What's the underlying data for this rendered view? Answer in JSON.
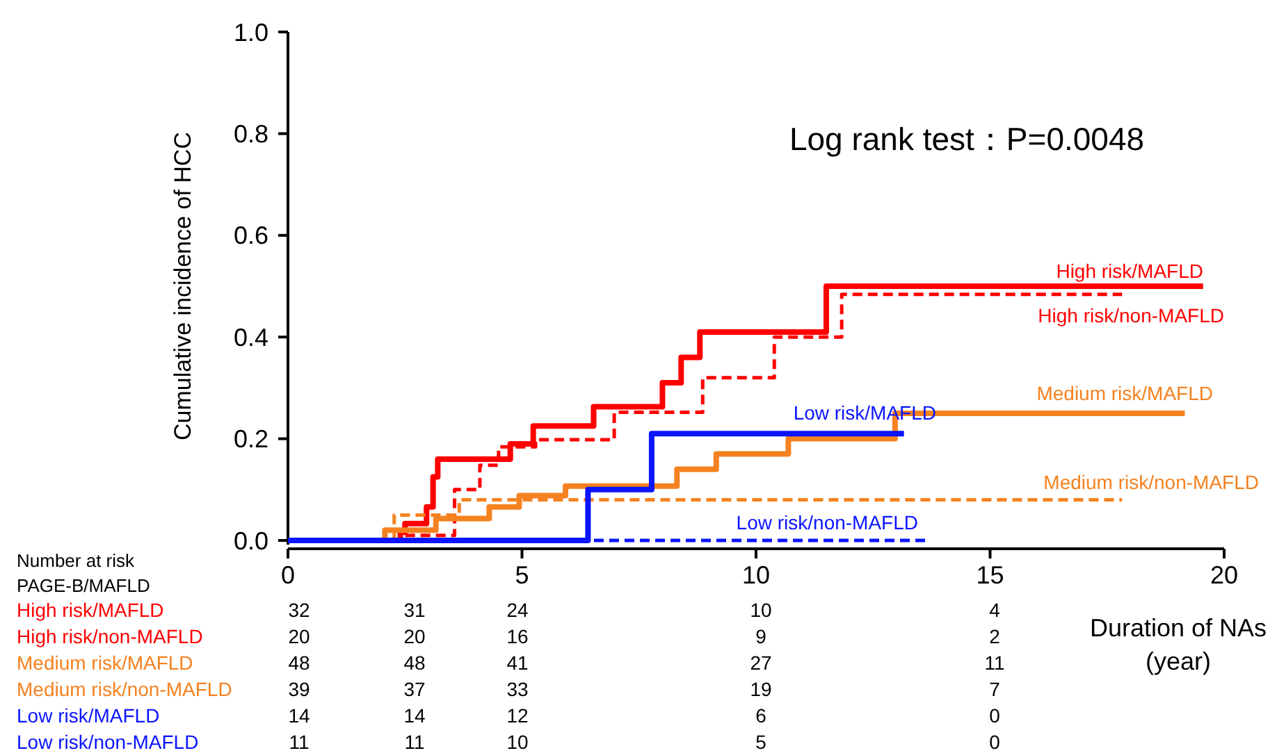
{
  "chart_data": {
    "type": "step",
    "xlabel": "Duration of NAs\n(year)",
    "ylabel": "Cumulative incidence of HCC",
    "xlim": [
      0,
      20
    ],
    "xticks": [
      0,
      5,
      10,
      15,
      20
    ],
    "ylim": [
      0,
      1
    ],
    "yticks": [
      {
        "value": 0,
        "label": "0.0"
      },
      {
        "value": 0.2,
        "label": "0.2"
      },
      {
        "value": 0.4,
        "label": "0.4"
      },
      {
        "value": 0.6,
        "label": "0.6"
      },
      {
        "value": 0.8,
        "label": "0.8"
      },
      {
        "value": 1,
        "label": "1.0"
      }
    ],
    "grid": false,
    "legend": false,
    "marker": "none",
    "series": [
      {
        "name": "High risk/MAFLD",
        "color": "#ff0000",
        "line_style": "solid",
        "x": [
          0,
          2.4,
          2.5,
          2.96,
          3.1,
          3.2,
          4.75,
          5.24,
          6.53,
          8.0,
          8.4,
          8.8,
          11.5,
          19.55
        ],
        "values": [
          0,
          0.016,
          0.033,
          0.066,
          0.125,
          0.16,
          0.19,
          0.225,
          0.263,
          0.31,
          0.36,
          0.41,
          0.5,
          0.5
        ]
      },
      {
        "name": "High risk/non-MAFLD",
        "color": "#ff0000",
        "line_style": "dashed",
        "x": [
          0,
          2.4,
          3.56,
          4.1,
          4.5,
          5.29,
          6.97,
          8.86,
          10.39,
          11.83,
          17.82
        ],
        "values": [
          0,
          0.01,
          0.1,
          0.148,
          0.184,
          0.198,
          0.252,
          0.32,
          0.4,
          0.484,
          0.484
        ]
      },
      {
        "name": "Medium risk/MAFLD",
        "color": "#f58220",
        "line_style": "solid",
        "x": [
          0,
          2.07,
          3.16,
          4.3,
          4.94,
          5.93,
          8.31,
          9.15,
          10.69,
          12.97,
          19.16
        ],
        "values": [
          0,
          0.02,
          0.043,
          0.066,
          0.088,
          0.107,
          0.14,
          0.17,
          0.2,
          0.25,
          0.25
        ]
      },
      {
        "name": "Medium risk/non-MAFLD",
        "color": "#f58220",
        "line_style": "dashed",
        "x": [
          0,
          2.27,
          3.66,
          17.82
        ],
        "values": [
          0,
          0.05,
          0.08,
          0.08
        ]
      },
      {
        "name": "Low risk/non-MAFLD",
        "color": "#0a14ff",
        "line_style": "dashed",
        "x": [
          0,
          13.7
        ],
        "values": [
          0,
          0
        ]
      },
      {
        "name": "Low risk/MAFLD",
        "color": "#0a14ff",
        "line_style": "solid",
        "x": [
          0,
          6.41,
          7.77,
          13.16
        ],
        "values": [
          0,
          0.1,
          0.21,
          0.21
        ]
      }
    ],
    "annotations": [
      "Log rank test：P=0.0048",
      "Number  at risk",
      "PAGE-B/MAFLD",
      "32 31 24 10 4",
      "20 20 16 9 2",
      "48 48 41 27 11",
      "39 37 33 19 7",
      "14 14 12 6 0",
      "11 11 10 5 0"
    ]
  }
}
